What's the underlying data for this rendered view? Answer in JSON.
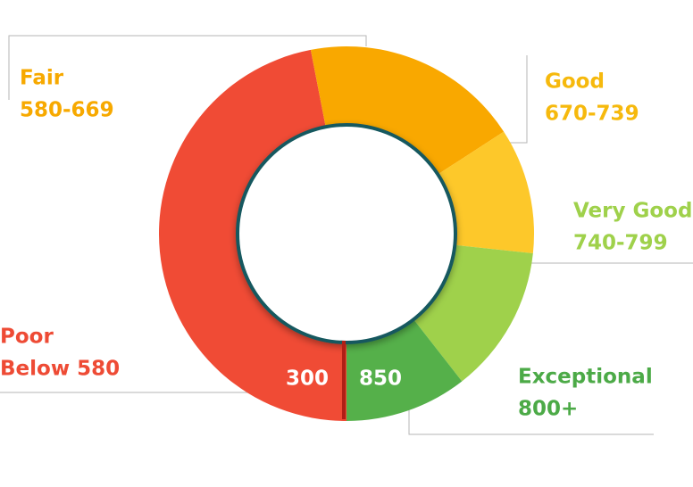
{
  "chart_data": {
    "type": "pie",
    "categories": [
      "Poor",
      "Fair",
      "Good",
      "Very Good",
      "Exceptional"
    ],
    "ranges": [
      "Below 580",
      "580-669",
      "670-739",
      "740-799",
      "800+"
    ],
    "values": [
      169,
      68,
      39,
      46,
      38
    ],
    "colors": [
      "#f04b35",
      "#f9a800",
      "#fdc82a",
      "#9fd14b",
      "#55b04a"
    ],
    "start_label": "300",
    "end_label": "850"
  }
}
